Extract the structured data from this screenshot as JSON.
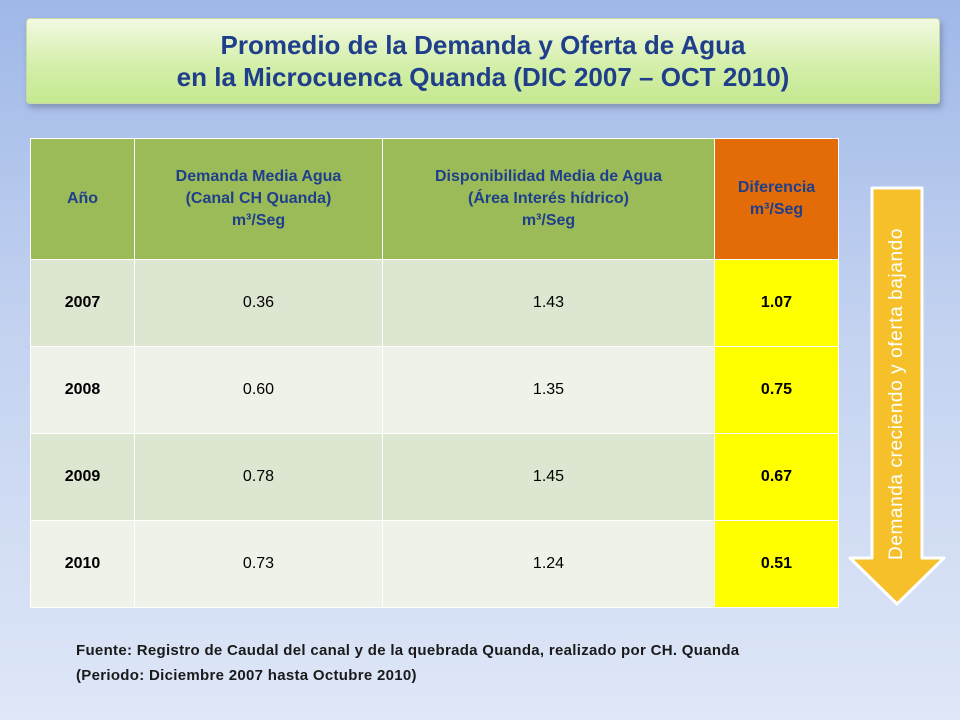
{
  "title": {
    "line1": "Promedio de la Demanda y Oferta de Agua",
    "line2": "en la Microcuenca Quanda (DIC 2007 – OCT 2010)"
  },
  "table": {
    "headers": [
      {
        "lines": [
          "Año"
        ]
      },
      {
        "lines": [
          "Demanda  Media Agua",
          "(Canal CH Quanda)",
          "m³/Seg"
        ]
      },
      {
        "lines": [
          "Disponibilidad Media de Agua",
          "(Área Interés hídrico)",
          "m³/Seg"
        ]
      },
      {
        "lines": [
          "Diferencia",
          "m³/Seg"
        ]
      }
    ],
    "rows": [
      {
        "year": "2007",
        "demanda": "0.36",
        "disponibilidad": "1.43",
        "diferencia": "1.07"
      },
      {
        "year": "2008",
        "demanda": "0.60",
        "disponibilidad": "1.35",
        "diferencia": "0.75"
      },
      {
        "year": "2009",
        "demanda": "0.78",
        "disponibilidad": "1.45",
        "diferencia": "0.67"
      },
      {
        "year": "2010",
        "demanda": "0.73",
        "disponibilidad": "1.24",
        "diferencia": "0.51"
      }
    ]
  },
  "arrow": {
    "label": "Demanda creciendo y oferta bajando",
    "fill_color": "#f5c02a",
    "icon": "down-arrow-icon"
  },
  "colors": {
    "header_green": "#9bbb59",
    "header_orange": "#e36c09",
    "highlight_yellow": "#ffff00",
    "title_text": "#1f3f8a"
  },
  "source": {
    "line1": "Fuente: Registro de Caudal del canal y de la quebrada Quanda, realizado por CH. Quanda",
    "line2": "(Periodo: Diciembre 2007 hasta Octubre 2010)"
  }
}
